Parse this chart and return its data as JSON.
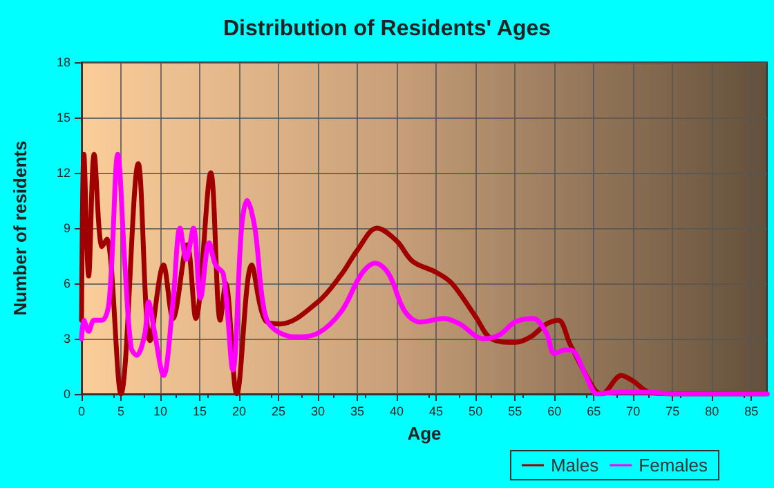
{
  "chart_data": {
    "type": "line",
    "title": "Distribution of Residents' Ages",
    "xlabel": "Age",
    "ylabel": "Number of residents",
    "xlim": [
      0,
      87
    ],
    "xticks": [
      0,
      5,
      10,
      15,
      20,
      25,
      30,
      35,
      40,
      45,
      50,
      55,
      60,
      65,
      70,
      75,
      80,
      85
    ],
    "ylim": [
      0,
      18
    ],
    "yticks": [
      0,
      3,
      6,
      9,
      12,
      15,
      18
    ],
    "grid": true,
    "legend": "bottom",
    "marker": "none",
    "line_style": "solid",
    "series": [
      {
        "name": "Males",
        "color": "#a00000",
        "x": [
          0,
          0.3,
          0.9,
          1.6,
          2.6,
          3.2,
          5,
          7.2,
          8.7,
          10.4,
          11.6,
          13.4,
          14.5,
          16.4,
          17.6,
          18.3,
          19.7,
          21.6,
          23.3,
          25.2,
          30,
          33,
          35,
          37.5,
          40,
          42,
          45,
          47,
          50,
          52,
          55,
          57,
          59,
          60.5,
          62,
          65,
          66,
          68.5,
          70,
          72,
          75,
          87
        ],
        "values": [
          4,
          13,
          6.4,
          13,
          8,
          8.4,
          0,
          12.5,
          2.9,
          7,
          4.1,
          8.1,
          4.1,
          12,
          4,
          6,
          0,
          7,
          4,
          3.8,
          5,
          6.5,
          7.8,
          9,
          8.3,
          7.2,
          6.6,
          6,
          4.2,
          3,
          2.8,
          3.1,
          3.8,
          4,
          2.7,
          0.3,
          0,
          1,
          0.7,
          0.1,
          0,
          0
        ]
      },
      {
        "name": "Females",
        "color": "#ff00ff",
        "x": [
          0,
          0.3,
          0.9,
          1.6,
          2.6,
          3.5,
          4.6,
          5.5,
          6.3,
          7,
          8,
          8.5,
          9.2,
          10.4,
          11.6,
          12.5,
          13.3,
          14.2,
          15.1,
          16.2,
          17,
          18,
          19.2,
          20.3,
          21,
          22,
          23,
          24,
          27,
          30,
          33,
          35.5,
          37.3,
          39,
          41,
          43,
          46,
          48,
          51,
          53,
          55,
          57.3,
          59,
          60,
          61.5,
          62.5,
          64,
          65.5,
          68,
          72,
          75,
          87
        ],
        "values": [
          3,
          4,
          3.4,
          4,
          4,
          5,
          13,
          7,
          2.5,
          2.1,
          3.2,
          5,
          3.5,
          1,
          5,
          9,
          7.3,
          9,
          5.2,
          8.2,
          7,
          6.5,
          1.3,
          9,
          10.5,
          9,
          5,
          3.7,
          3.1,
          3.3,
          4.5,
          6.5,
          7.1,
          6.5,
          4.5,
          3.9,
          4.1,
          3.8,
          3,
          3.2,
          3.9,
          4.1,
          3.3,
          2.2,
          2.4,
          2.3,
          1,
          0,
          0.1,
          0.1,
          0,
          0
        ]
      }
    ]
  }
}
